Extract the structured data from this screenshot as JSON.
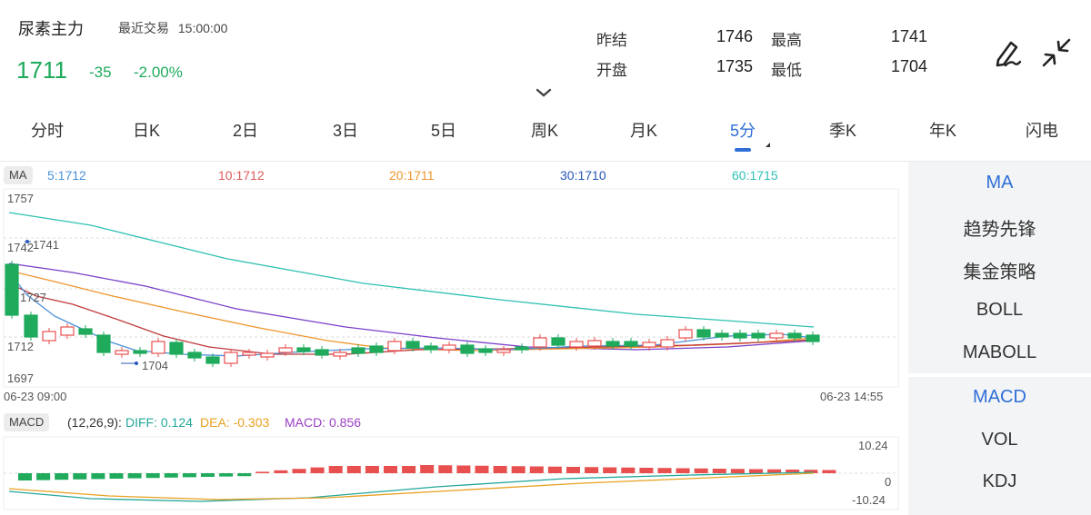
{
  "header": {
    "title": "尿素主力",
    "last_trade_label": "最近交易",
    "last_trade_time": "15:00:00",
    "price": "1711",
    "change": "-35",
    "change_pct": "-2.00%",
    "stats": {
      "prev_settle_label": "昨结",
      "prev_settle": "1746",
      "high_label": "最高",
      "high": "1741",
      "open_label": "开盘",
      "open": "1735",
      "low_label": "最低",
      "low": "1704"
    },
    "icons": [
      "draw-pen-icon",
      "collapse-arrows-icon",
      "chevron-down-icon"
    ]
  },
  "tabs": [
    {
      "label": "分时"
    },
    {
      "label": "日K"
    },
    {
      "label": "2日"
    },
    {
      "label": "3日"
    },
    {
      "label": "5日"
    },
    {
      "label": "周K"
    },
    {
      "label": "月K"
    },
    {
      "label": "5分",
      "active": true
    },
    {
      "label": "季K"
    },
    {
      "label": "年K"
    },
    {
      "label": "闪电"
    }
  ],
  "ma_legend": {
    "badge": "MA",
    "items": [
      {
        "text": "5:1712",
        "color": "#4a90d9"
      },
      {
        "text": "10:1712",
        "color": "#e05a5a"
      },
      {
        "text": "20:1711",
        "color": "#f0962e"
      },
      {
        "text": "30:1710",
        "color": "#2858b8"
      },
      {
        "text": "60:1715",
        "color": "#2fc1b4"
      }
    ]
  },
  "main_chart": {
    "y_labels": [
      "1757",
      "1742",
      "1727",
      "1712",
      "1697"
    ],
    "x_start": "06-23 09:00",
    "x_end": "06-23 14:55",
    "high_marker": "1741",
    "low_marker": "1704",
    "colors": {
      "up": "#e84f4f",
      "down": "#1faa5c"
    }
  },
  "macd_legend": {
    "badge": "MACD",
    "params": "(12,26,9):",
    "diff": "DIFF: 0.124",
    "dea": "DEA: -0.303",
    "macd": "MACD: 0.856",
    "y_max": "10.24",
    "y_zero": "0",
    "y_min": "-10.24"
  },
  "side_panel": {
    "main_indicators": [
      {
        "label": "MA",
        "active": true
      },
      {
        "label": "趋势先锋"
      },
      {
        "label": "集金策略"
      },
      {
        "label": "BOLL"
      },
      {
        "label": "MABOLL"
      }
    ],
    "sub_indicators": [
      {
        "label": "MACD",
        "active": true
      },
      {
        "label": "VOL"
      },
      {
        "label": "KDJ"
      }
    ]
  }
}
